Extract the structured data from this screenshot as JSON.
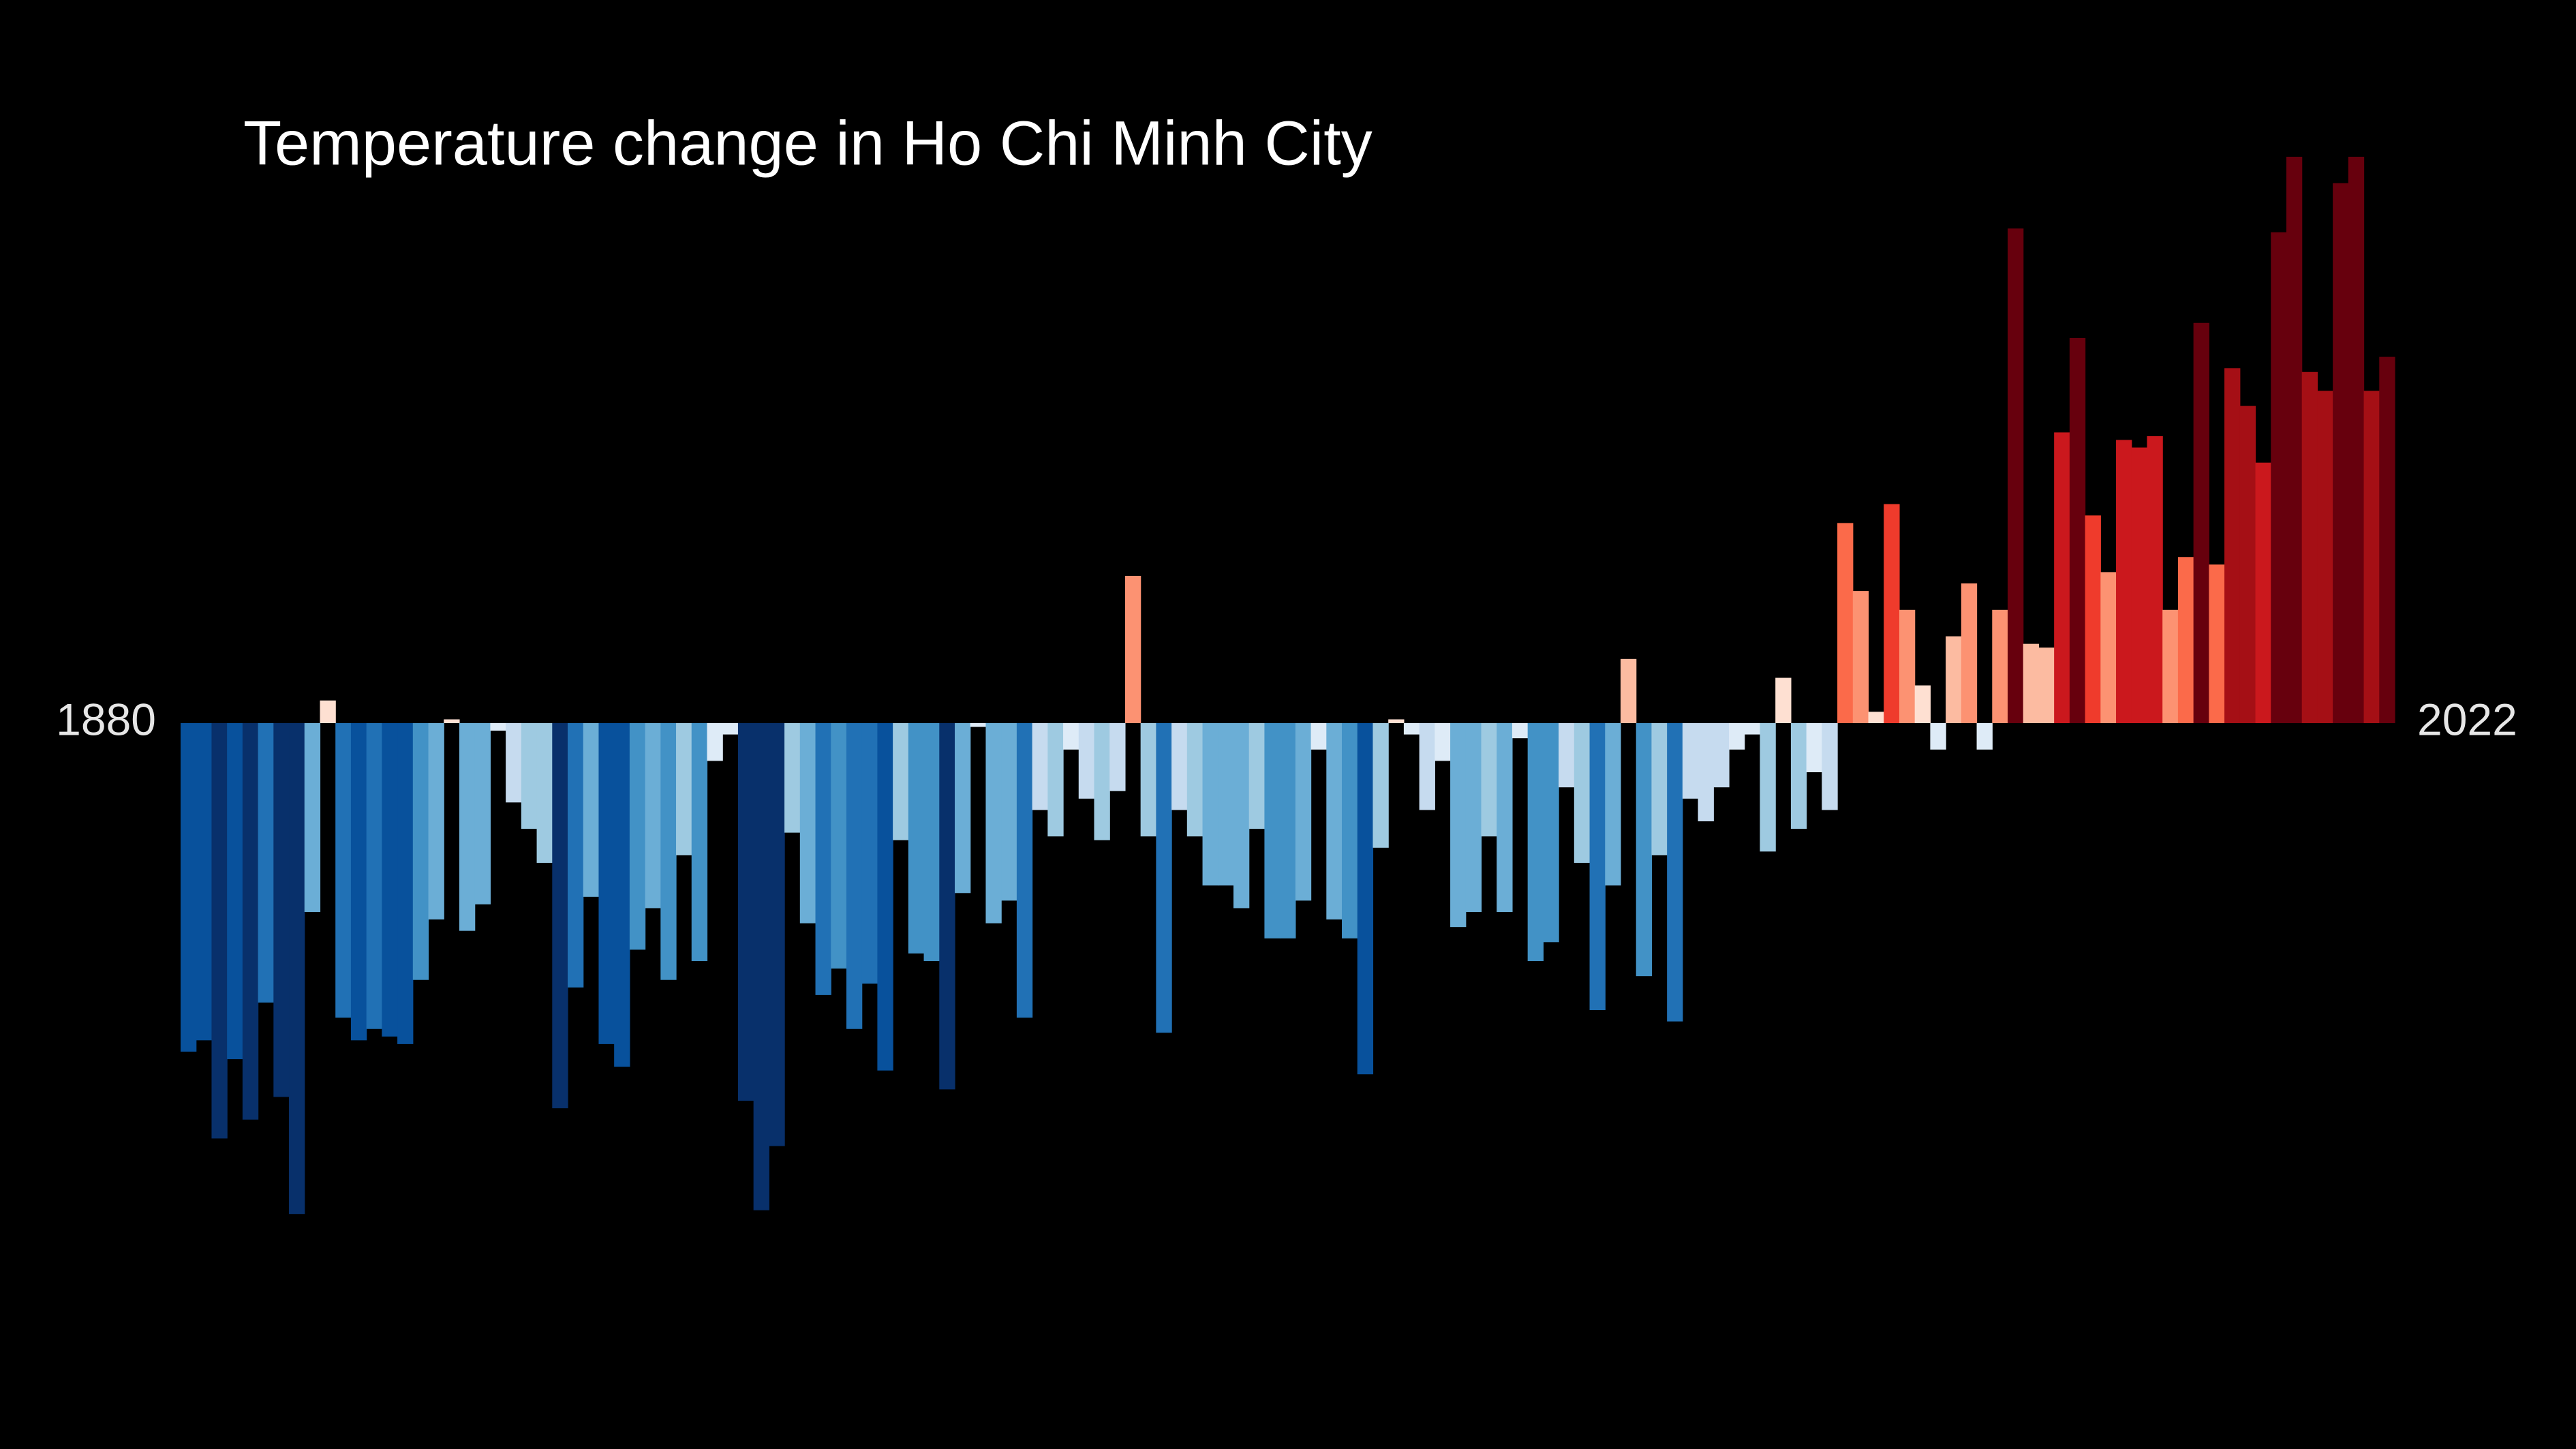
{
  "chart_data": {
    "type": "bar",
    "title": "Temperature change in Ho Chi Minh City",
    "categories": [
      "1880",
      null,
      null,
      null,
      null,
      null,
      null,
      null,
      null,
      null,
      null,
      null,
      null,
      null,
      null,
      null,
      null,
      null,
      null,
      null,
      null,
      null,
      null,
      null,
      null,
      null,
      null,
      null,
      null,
      null,
      null,
      null,
      null,
      null,
      null,
      null,
      null,
      null,
      null,
      null,
      null,
      null,
      null,
      null,
      null,
      null,
      null,
      null,
      null,
      null,
      null,
      null,
      null,
      null,
      null,
      null,
      null,
      null,
      null,
      null,
      null,
      null,
      null,
      null,
      null,
      null,
      null,
      null,
      null,
      null,
      null,
      null,
      null,
      null,
      null,
      null,
      null,
      null,
      null,
      null,
      null,
      null,
      null,
      null,
      null,
      null,
      null,
      null,
      null,
      null,
      null,
      null,
      null,
      null,
      null,
      null,
      null,
      null,
      null,
      null,
      null,
      null,
      null,
      null,
      null,
      null,
      null,
      null,
      null,
      null,
      null,
      null,
      null,
      null,
      null,
      null,
      null,
      null,
      null,
      null,
      null,
      null,
      null,
      null,
      null,
      null,
      null,
      null,
      null,
      null,
      null,
      null,
      null,
      null,
      null,
      null,
      null,
      null,
      null,
      null,
      null,
      null,
      "2022"
    ],
    "values": [
      -0.87,
      -0.84,
      -1.1,
      -0.89,
      -1.05,
      -0.74,
      -0.99,
      -1.3,
      -0.5,
      0.06,
      -0.78,
      -0.84,
      -0.81,
      -0.83,
      -0.85,
      -0.68,
      -0.52,
      0.01,
      -0.55,
      -0.48,
      -0.02,
      -0.21,
      -0.28,
      -0.37,
      -1.02,
      -0.7,
      -0.46,
      -0.85,
      -0.91,
      -0.6,
      -0.49,
      -0.68,
      -0.35,
      -0.63,
      -0.1,
      -0.03,
      -1.0,
      -1.29,
      -1.12,
      -0.29,
      -0.53,
      -0.72,
      -0.65,
      -0.81,
      -0.69,
      -0.92,
      -0.31,
      -0.61,
      -0.63,
      -0.97,
      -0.45,
      -0.01,
      -0.53,
      -0.47,
      -0.78,
      -0.23,
      -0.3,
      -0.07,
      -0.2,
      -0.31,
      -0.18,
      0.39,
      -0.3,
      -0.82,
      -0.23,
      -0.3,
      -0.43,
      -0.43,
      -0.49,
      -0.28,
      -0.57,
      -0.57,
      -0.47,
      -0.07,
      -0.52,
      -0.57,
      -0.93,
      -0.33,
      0.01,
      -0.03,
      -0.23,
      -0.1,
      -0.54,
      -0.5,
      -0.3,
      -0.5,
      -0.04,
      -0.63,
      -0.58,
      -0.17,
      -0.37,
      -0.76,
      -0.43,
      0.17,
      -0.67,
      -0.35,
      -0.79,
      -0.2,
      -0.26,
      -0.17,
      -0.07,
      -0.03,
      -0.34,
      0.12,
      -0.28,
      -0.13,
      -0.23,
      0.53,
      0.35,
      0.03,
      0.58,
      0.3,
      0.1,
      -0.07,
      0.23,
      0.37,
      -0.07,
      0.3,
      1.31,
      0.21,
      0.2,
      0.77,
      1.02,
      0.55,
      0.4,
      0.75,
      0.73,
      0.76,
      0.3,
      0.44,
      1.06,
      0.42,
      0.94,
      0.84,
      0.69,
      1.3,
      1.5,
      0.93,
      0.88,
      1.43,
      1.5,
      0.88,
      0.97
    ],
    "ylim": [
      -1.5,
      1.5
    ],
    "color_range": [
      -1.1,
      1.1
    ],
    "colors": [
      "#08306b",
      "#08519c",
      "#2171b5",
      "#4292c6",
      "#6baed6",
      "#9ecae1",
      "#c6dbef",
      "#deebf7",
      "#fee0d2",
      "#fcbba1",
      "#fc9272",
      "#fb6a4a",
      "#ef3b2c",
      "#cb181d",
      "#a50f15",
      "#67000d"
    ]
  }
}
